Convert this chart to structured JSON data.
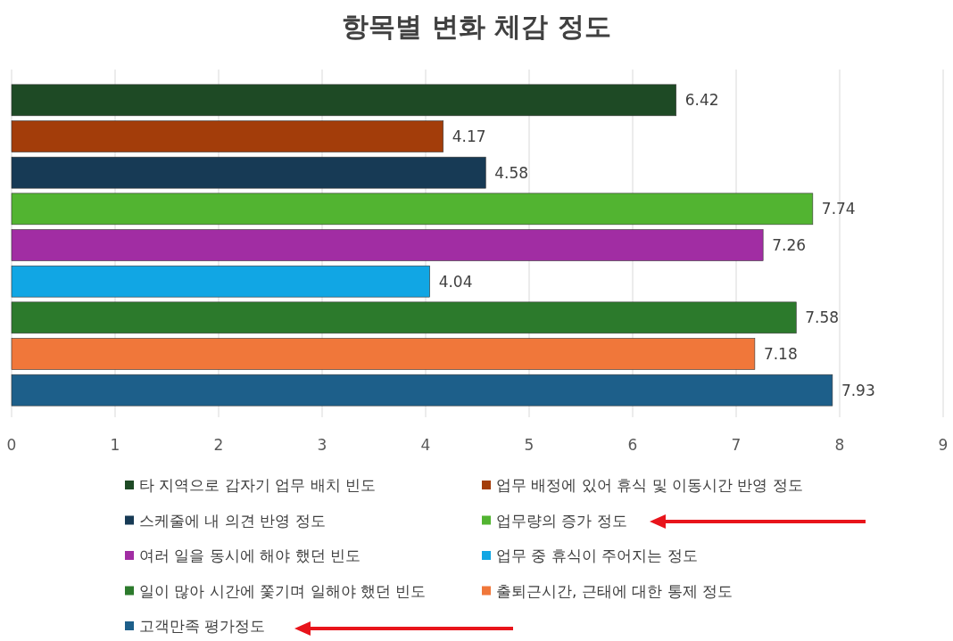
{
  "chart_data": {
    "type": "bar",
    "orientation": "horizontal",
    "title": "항목별 변화 체감 정도",
    "categories": [
      null
    ],
    "series": [
      {
        "name": "타 지역으로 갑자기 업무 배치 빈도",
        "color": "#1e4a25",
        "values": [
          6.42
        ]
      },
      {
        "name": "업무 배정에 있어 휴식 및 이동시간 반영 정도",
        "color": "#a33d0a",
        "values": [
          4.17
        ]
      },
      {
        "name": "스케줄에 내 의견 반영 정도",
        "color": "#173a55",
        "values": [
          4.58
        ]
      },
      {
        "name": "업무량의 증가 정도",
        "color": "#52b431",
        "values": [
          7.74
        ]
      },
      {
        "name": "여러 일을 동시에 해야 했던 빈도",
        "color": "#a12da3",
        "values": [
          7.26
        ]
      },
      {
        "name": "업무 중 휴식이 주어지는 정도",
        "color": "#11a6e4",
        "values": [
          4.04
        ]
      },
      {
        "name": "일이 많아 시간에 쫓기며 일해야 했던 빈도",
        "color": "#2c7a2c",
        "values": [
          7.58
        ]
      },
      {
        "name": "출퇴근시간, 근태에 대한 통제 정도",
        "color": "#f0773a",
        "values": [
          7.18
        ]
      },
      {
        "name": "고객만족 평가정도",
        "color": "#1d5f8a",
        "values": [
          7.93
        ]
      }
    ],
    "xlim": [
      0,
      9
    ],
    "xticks": [
      0,
      1,
      2,
      3,
      4,
      5,
      6,
      7,
      8,
      9
    ],
    "grid": "x",
    "legend": "bottom",
    "data_labels": true
  }
}
